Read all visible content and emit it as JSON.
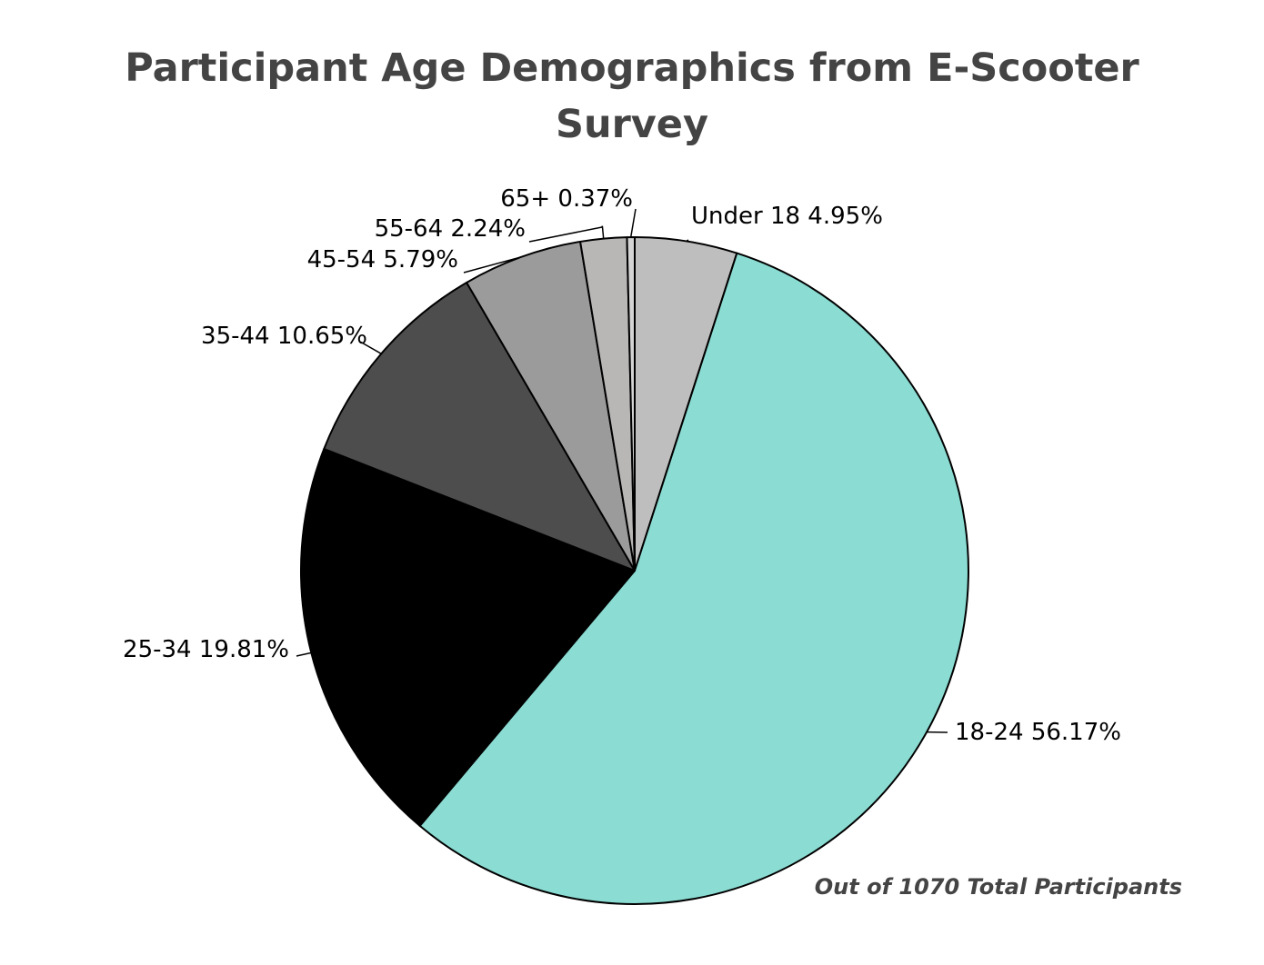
{
  "chart_data": {
    "type": "pie",
    "title_lines": [
      "Participant Age Demographics from E-Scooter",
      "Survey"
    ],
    "note": "Out of 1070 Total Participants",
    "categories": [
      "Under 18",
      "18-24",
      "25-34",
      "35-44",
      "45-54",
      "55-64",
      "65+"
    ],
    "values": [
      4.95,
      56.17,
      19.81,
      10.65,
      5.79,
      2.24,
      0.37
    ],
    "labels": [
      "Under 18 4.95%",
      "18-24 56.17%",
      "25-34 19.81%",
      "35-44 10.65%",
      "45-54 5.79%",
      "55-64 2.24%",
      "65+ 0.37%"
    ],
    "colors": [
      "#bebebe",
      "#8bdcd3",
      "#000000",
      "#4d4d4d",
      "#9b9b9b",
      "#b9b6b6",
      "#d4d4d4"
    ],
    "slice_border_color": "#000000",
    "start_angle": "12 o'clock",
    "direction": "clockwise",
    "legend": "none"
  }
}
